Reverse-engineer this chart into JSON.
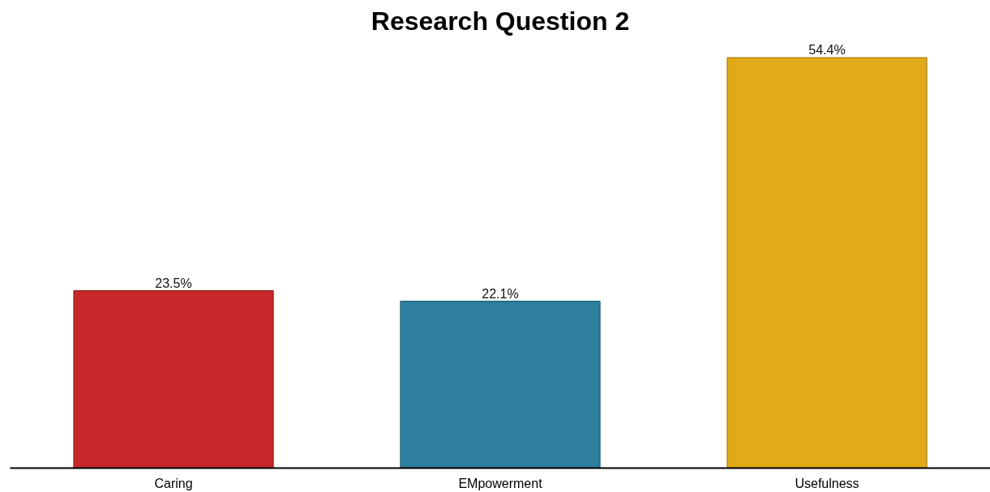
{
  "chart_data": {
    "type": "bar",
    "title": "Research Question 2",
    "categories": [
      "Caring",
      "EMpowerment",
      "Usefulness"
    ],
    "values": [
      23.5,
      22.1,
      54.4
    ],
    "value_labels": [
      "23.5%",
      "22.1%",
      "54.4%"
    ],
    "colors": [
      "#c8282a",
      "#2e7f9e",
      "#e2aa17"
    ],
    "grid": false
  }
}
